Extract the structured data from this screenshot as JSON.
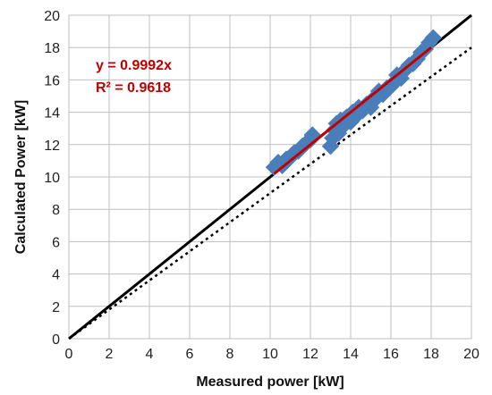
{
  "chart_data": {
    "type": "scatter",
    "title": "",
    "xlabel": "Measured power [kW]",
    "ylabel": "Calculated Power [kW]",
    "xlim": [
      0,
      20
    ],
    "ylim": [
      0,
      20
    ],
    "xticks": [
      "0",
      "2",
      "4",
      "6",
      "8",
      "10",
      "12",
      "14",
      "16",
      "18",
      "20"
    ],
    "yticks": [
      "0",
      "2",
      "4",
      "6",
      "8",
      "10",
      "12",
      "14",
      "16",
      "18",
      "20"
    ],
    "grid": true,
    "annotations": {
      "equation": "y = 0.9992x",
      "r_squared": "R² = 0.9618",
      "color": "#c00000"
    },
    "series": [
      {
        "kind": "scatter",
        "marker": "diamond",
        "color": "#4a7ebb",
        "points": [
          [
            10.2,
            10.6
          ],
          [
            10.4,
            10.9
          ],
          [
            10.6,
            10.7
          ],
          [
            10.8,
            11.1
          ],
          [
            11.0,
            11.2
          ],
          [
            11.2,
            11.5
          ],
          [
            11.4,
            11.6
          ],
          [
            11.6,
            11.9
          ],
          [
            11.8,
            12.1
          ],
          [
            12.0,
            12.3
          ],
          [
            12.1,
            12.6
          ],
          [
            13.0,
            11.9
          ],
          [
            13.1,
            12.4
          ],
          [
            13.2,
            12.9
          ],
          [
            13.3,
            13.3
          ],
          [
            13.4,
            12.7
          ],
          [
            13.5,
            13.5
          ],
          [
            13.6,
            13.1
          ],
          [
            13.8,
            13.7
          ],
          [
            14.0,
            13.4
          ],
          [
            14.1,
            14.0
          ],
          [
            14.3,
            13.8
          ],
          [
            14.4,
            14.3
          ],
          [
            14.6,
            14.1
          ],
          [
            14.8,
            14.5
          ],
          [
            15.0,
            14.3
          ],
          [
            15.1,
            14.8
          ],
          [
            15.3,
            14.9
          ],
          [
            15.4,
            15.3
          ],
          [
            15.6,
            15.1
          ],
          [
            15.8,
            15.5
          ],
          [
            16.0,
            15.6
          ],
          [
            16.2,
            15.9
          ],
          [
            16.3,
            16.3
          ],
          [
            16.5,
            16.1
          ],
          [
            16.7,
            16.6
          ],
          [
            16.9,
            16.9
          ],
          [
            17.1,
            17.0
          ],
          [
            17.3,
            17.3
          ],
          [
            17.5,
            17.7
          ],
          [
            17.7,
            17.9
          ],
          [
            17.9,
            18.3
          ],
          [
            18.1,
            18.6
          ]
        ]
      },
      {
        "kind": "line",
        "style": "solid",
        "color": "#000000",
        "x": [
          0,
          20
        ],
        "y": [
          0,
          20
        ]
      },
      {
        "kind": "line",
        "style": "dotted",
        "color": "#000000",
        "x": [
          0,
          20
        ],
        "y": [
          0,
          18
        ]
      },
      {
        "kind": "line",
        "style": "solid",
        "color": "#c00000",
        "x": [
          10.2,
          18.0
        ],
        "y": [
          10.2,
          18.0
        ]
      }
    ]
  }
}
